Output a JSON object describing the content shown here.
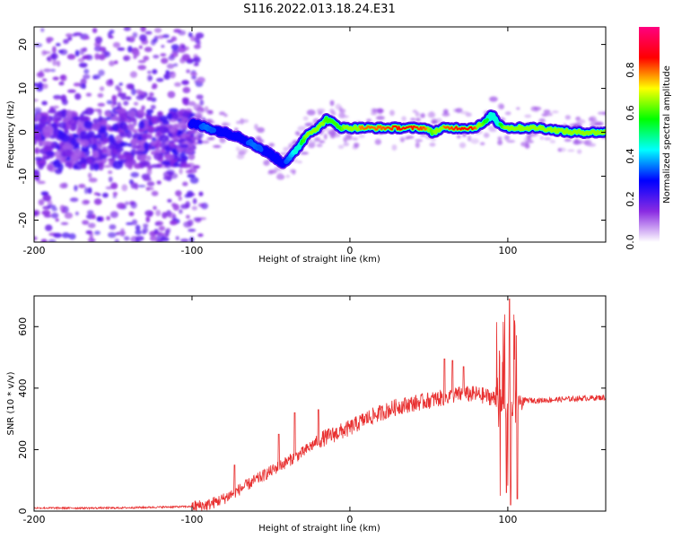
{
  "figure_title": "S116.2022.013.18.24.E31",
  "chart_data": [
    {
      "type": "heatmap",
      "title": "",
      "xlabel": "Height of straight line (km)",
      "ylabel": "Frequency (Hz)",
      "xlim": [
        -200,
        162
      ],
      "ylim": [
        -25,
        24
      ],
      "xticks": [
        -200,
        -100,
        0,
        100
      ],
      "yticks": [
        -20,
        -10,
        0,
        10,
        20
      ],
      "colorbar": {
        "label": "Normalized spectral amplitude",
        "range": [
          0,
          1
        ],
        "ticks": [
          0.0,
          0.2,
          0.4,
          0.6,
          0.8
        ],
        "tick_labels": [
          "0.0",
          "0.2",
          "0.4",
          "0.6",
          "0.8"
        ],
        "colormap": [
          "#ffffff",
          "#8a2be2",
          "#0000ff",
          "#00ffff",
          "#00ff00",
          "#ffff00",
          "#ff0000",
          "#ff0080"
        ]
      },
      "ridge": {
        "height_km": [
          -100,
          -90,
          -80,
          -70,
          -60,
          -50,
          -43,
          -38,
          -32,
          -26,
          -20,
          -15,
          -10,
          -5,
          0,
          10,
          20,
          30,
          40,
          48,
          52,
          60,
          70,
          78,
          85,
          90,
          94,
          100,
          110,
          120,
          140,
          162
        ],
        "frequency_hz": [
          2,
          1,
          0,
          -1,
          -3,
          -5,
          -7,
          -6,
          -3,
          0,
          1,
          3,
          2,
          1,
          1,
          1,
          1,
          1,
          1,
          1,
          0,
          1,
          1,
          1,
          2,
          4,
          2,
          1,
          1,
          1,
          0,
          0
        ],
        "amplitude": [
          0.3,
          0.35,
          0.3,
          0.3,
          0.35,
          0.3,
          0.3,
          0.35,
          0.5,
          0.7,
          0.75,
          0.6,
          0.6,
          0.6,
          0.75,
          0.8,
          0.8,
          0.85,
          0.85,
          0.8,
          0.6,
          0.8,
          0.85,
          0.85,
          0.6,
          0.45,
          0.5,
          0.7,
          0.75,
          0.75,
          0.7,
          0.65
        ]
      },
      "noise_region_km": [
        -200,
        -100
      ],
      "noise_band_hz": [
        -8,
        5
      ]
    },
    {
      "type": "line",
      "title": "",
      "xlabel": "Height of straight line (km)",
      "ylabel": "SNR (10 * v/v)",
      "xlim": [
        -200,
        162
      ],
      "ylim": [
        0,
        700
      ],
      "xticks": [
        -200,
        -100,
        0,
        100
      ],
      "yticks": [
        0,
        200,
        400,
        600
      ],
      "series_color": "#e83030",
      "envelope": {
        "x": [
          -200,
          -150,
          -100,
          -90,
          -80,
          -70,
          -60,
          -50,
          -40,
          -30,
          -20,
          -10,
          0,
          10,
          20,
          30,
          40,
          50,
          60,
          70,
          80,
          90,
          95,
          100,
          105,
          110,
          120,
          140,
          162
        ],
        "y": [
          10,
          10,
          15,
          20,
          40,
          70,
          100,
          130,
          160,
          190,
          230,
          250,
          270,
          300,
          320,
          340,
          350,
          360,
          370,
          380,
          380,
          370,
          350,
          330,
          340,
          360,
          360,
          365,
          370
        ]
      },
      "spikes": [
        {
          "x": -73,
          "y": 150
        },
        {
          "x": -45,
          "y": 250
        },
        {
          "x": -35,
          "y": 320
        },
        {
          "x": -20,
          "y": 330
        },
        {
          "x": 60,
          "y": 495
        },
        {
          "x": 65,
          "y": 490
        },
        {
          "x": 72,
          "y": 470
        },
        {
          "x": 95,
          "y": 690
        },
        {
          "x": 98,
          "y": 640
        },
        {
          "x": 101,
          "y": 690
        },
        {
          "x": 104,
          "y": 620
        }
      ],
      "dips": [
        {
          "x": 95,
          "y": 50
        },
        {
          "x": 99,
          "y": 60
        },
        {
          "x": 102,
          "y": 20
        },
        {
          "x": 106,
          "y": 40
        }
      ]
    }
  ]
}
